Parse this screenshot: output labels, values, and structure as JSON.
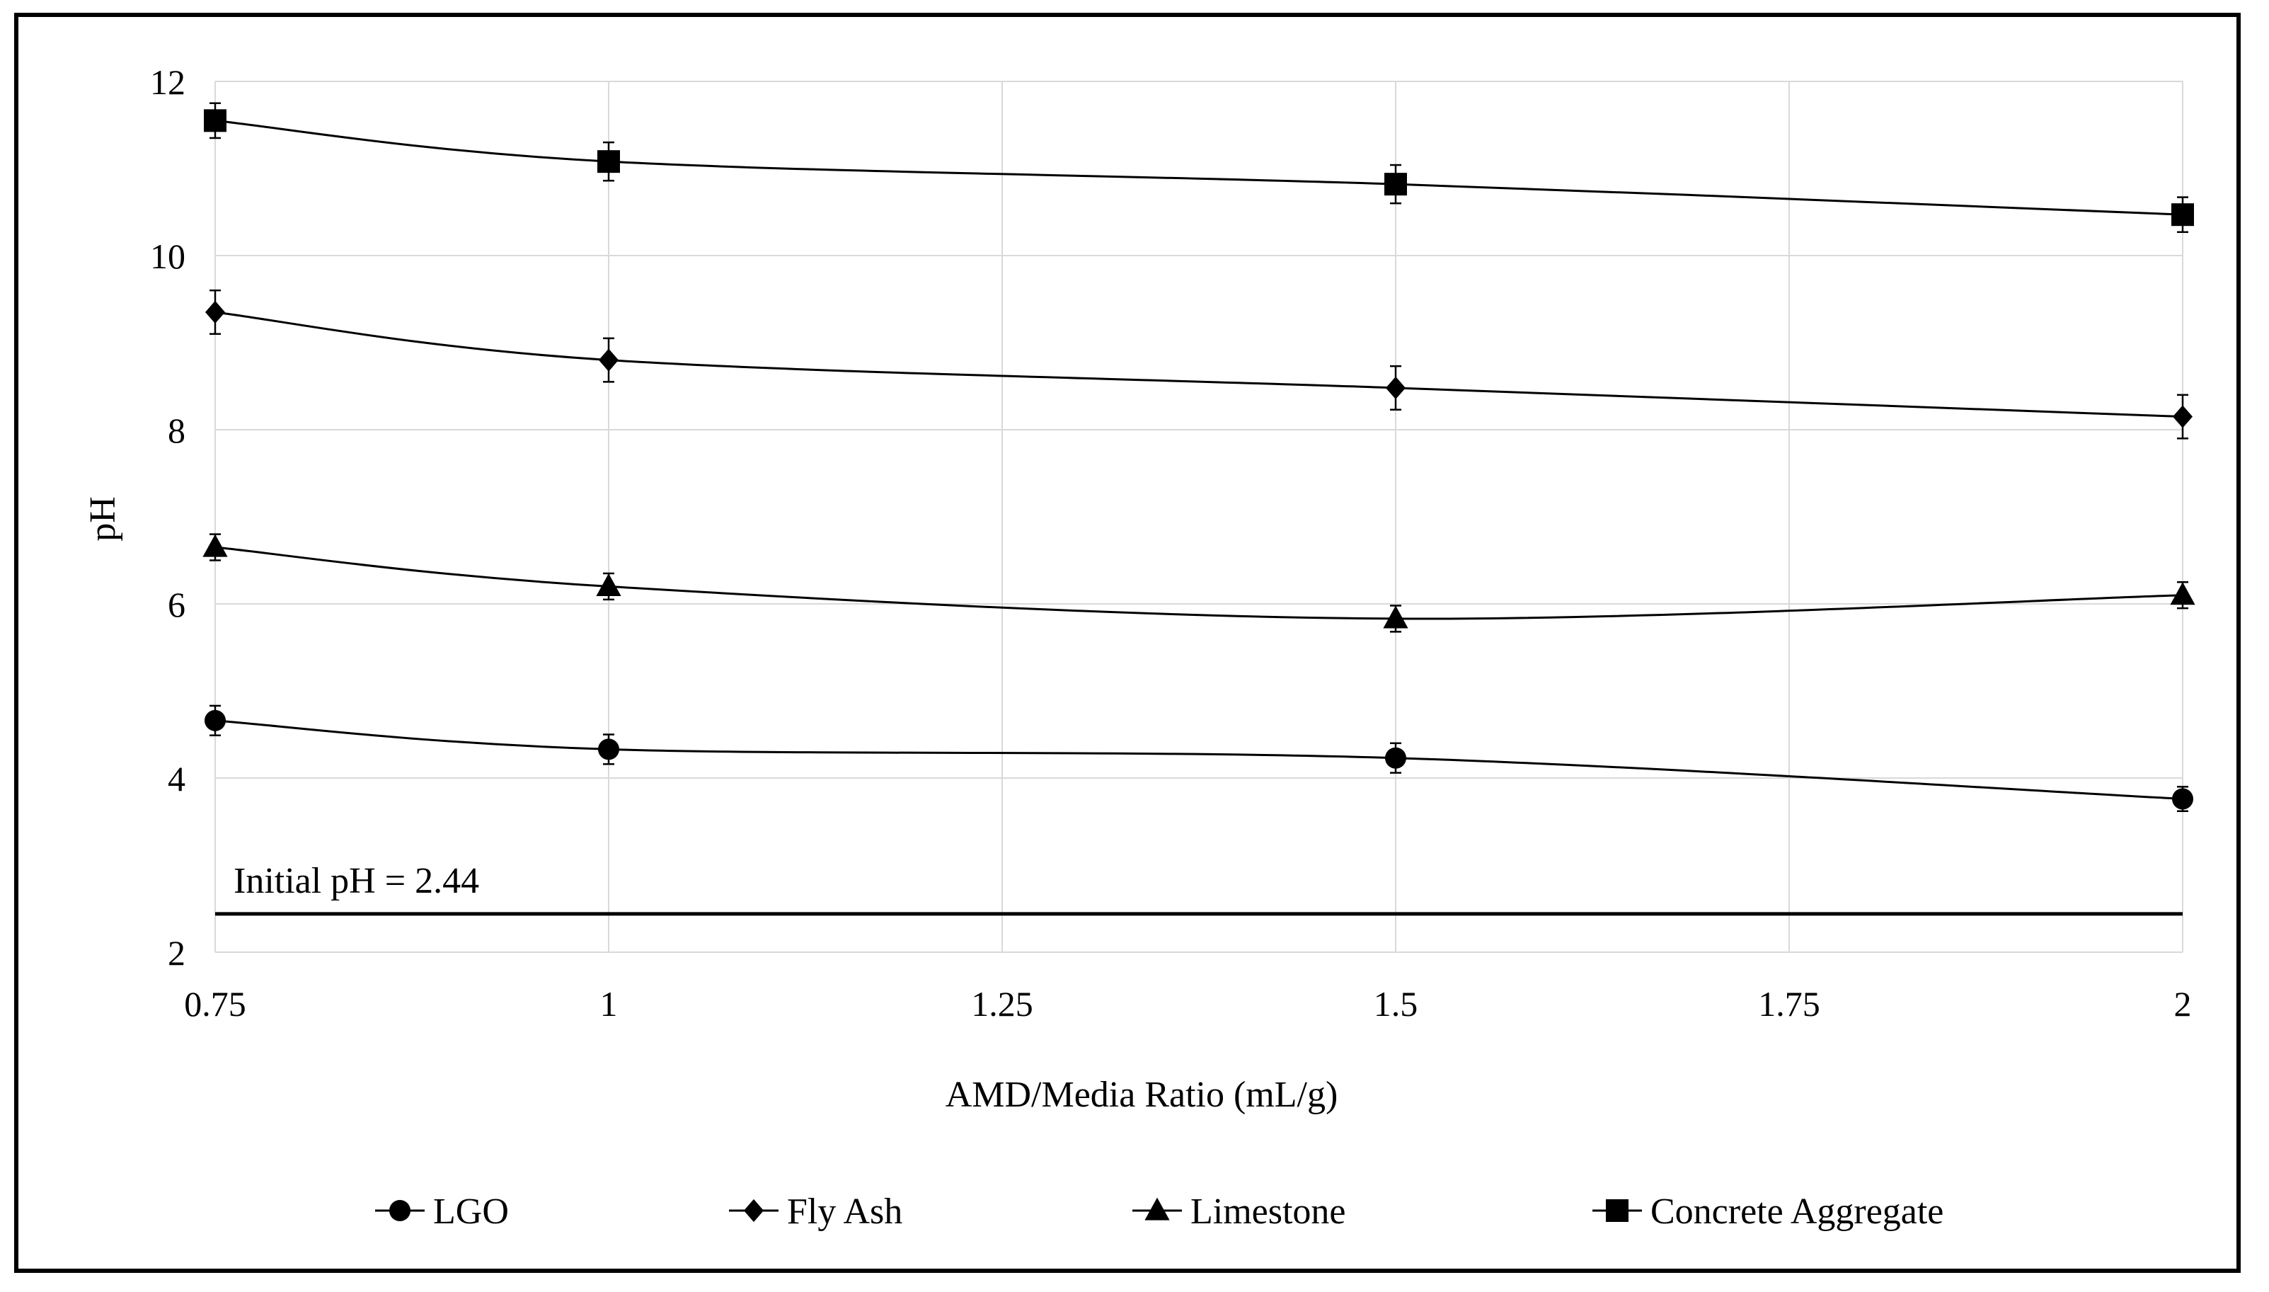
{
  "chart_data": {
    "type": "line",
    "title": "",
    "xlabel": "AMD/Media Ratio (mL/g)",
    "ylabel": "pH",
    "xlim": [
      0.75,
      2
    ],
    "ylim": [
      2,
      12
    ],
    "x_ticks": [
      "0.75",
      "1",
      "1.25",
      "1.5",
      "1.75",
      "2"
    ],
    "y_ticks": [
      "2",
      "4",
      "6",
      "8",
      "10",
      "12"
    ],
    "x": [
      0.75,
      1,
      1.5,
      2
    ],
    "series": [
      {
        "name": "LGO",
        "marker": "circle",
        "values": [
          4.66,
          4.33,
          4.23,
          3.76
        ],
        "errors": [
          0.17,
          0.17,
          0.17,
          0.14
        ]
      },
      {
        "name": "Fly Ash",
        "marker": "diamond",
        "values": [
          9.35,
          8.8,
          8.48,
          8.15
        ],
        "errors": [
          0.25,
          0.25,
          0.25,
          0.25
        ]
      },
      {
        "name": "Limestone",
        "marker": "triangle",
        "values": [
          6.65,
          6.2,
          5.83,
          6.1
        ],
        "errors": [
          0.15,
          0.15,
          0.15,
          0.15
        ]
      },
      {
        "name": "Concrete Aggregate",
        "marker": "square",
        "values": [
          11.55,
          11.08,
          10.82,
          10.47
        ],
        "errors": [
          0.2,
          0.22,
          0.22,
          0.2
        ]
      }
    ],
    "reference_line": {
      "value": 2.44,
      "label": "Initial pH = 2.44"
    },
    "grid": true,
    "legend_position": "bottom",
    "colors": {
      "line": "#000000",
      "grid": "#d9d9d9",
      "frame": "#000000"
    }
  }
}
